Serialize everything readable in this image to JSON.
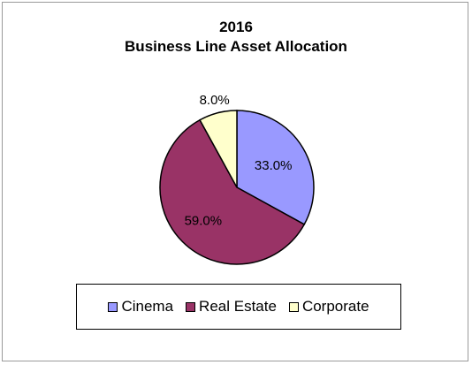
{
  "chart_data": {
    "type": "pie",
    "title_lines": [
      "2016",
      "Business Line Asset Allocation"
    ],
    "categories": [
      "Cinema",
      "Real Estate",
      "Corporate"
    ],
    "values": [
      33.0,
      59.0,
      8.0
    ],
    "labels": [
      "33.0%",
      "59.0%",
      "8.0%"
    ],
    "colors": [
      "#9999ff",
      "#993366",
      "#ffffcc"
    ],
    "legend_position": "bottom"
  }
}
